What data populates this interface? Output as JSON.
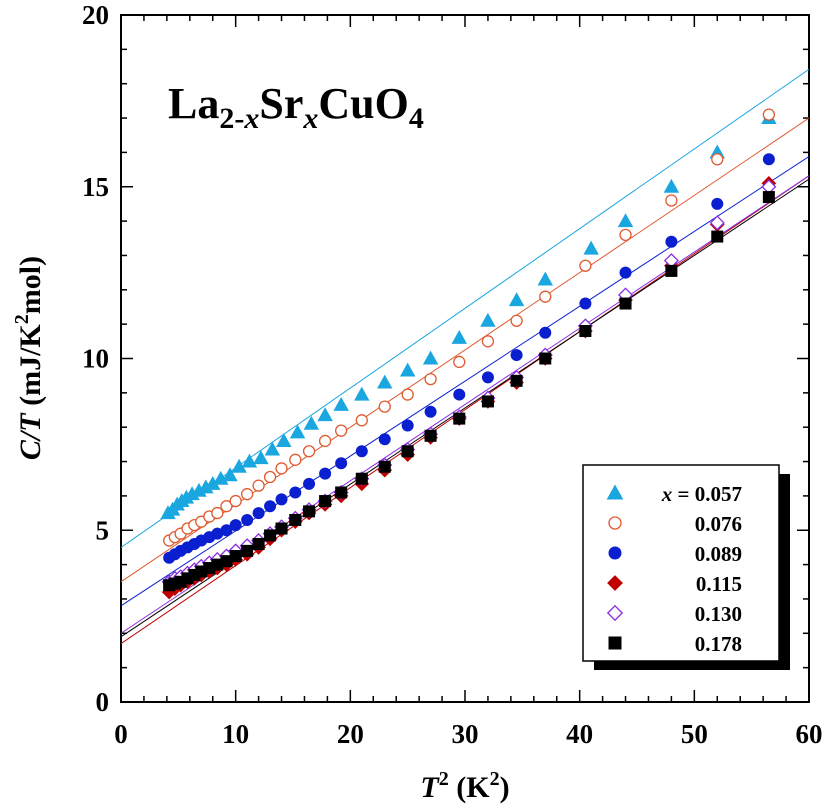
{
  "chart_data": {
    "type": "scatter",
    "title_parts": {
      "a": "La",
      "b": "2-",
      "c": "x",
      "d": "Sr",
      "e": "x",
      "f": "CuO",
      "g": "4"
    },
    "xlabel": {
      "italic": "T",
      "sup": "2",
      "rest": " (K",
      "sup2": "2",
      "close": ")"
    },
    "ylabel": {
      "italic": "C/T",
      "rest": " (mJ/K",
      "sup": "2",
      "close": "mol)"
    },
    "xlim": [
      0,
      60
    ],
    "ylim": [
      0,
      20
    ],
    "xticks": [
      "0",
      "10",
      "20",
      "30",
      "40",
      "50",
      "60"
    ],
    "yticks": [
      "0",
      "5",
      "10",
      "15",
      "20"
    ],
    "grid": false,
    "legend_position": "bottom-right",
    "legend_prefix": "x = ",
    "series": [
      {
        "name": "0.057",
        "color": "#1AA7E0",
        "marker": "triangle",
        "filled": true,
        "fit": [
          4.5,
          0.232
        ],
        "points": [
          [
            4.1,
            5.5
          ],
          [
            4.5,
            5.6
          ],
          [
            4.9,
            5.75
          ],
          [
            5.3,
            5.85
          ],
          [
            5.7,
            5.95
          ],
          [
            6.2,
            6.05
          ],
          [
            6.8,
            6.15
          ],
          [
            7.4,
            6.25
          ],
          [
            8.0,
            6.35
          ],
          [
            8.7,
            6.5
          ],
          [
            9.5,
            6.6
          ],
          [
            10.3,
            6.85
          ],
          [
            11.2,
            7.0
          ],
          [
            12.2,
            7.1
          ],
          [
            13.2,
            7.35
          ],
          [
            14.2,
            7.6
          ],
          [
            15.4,
            7.85
          ],
          [
            16.6,
            8.1
          ],
          [
            17.8,
            8.35
          ],
          [
            19.2,
            8.65
          ],
          [
            21.0,
            8.95
          ],
          [
            23.0,
            9.3
          ],
          [
            25.0,
            9.65
          ],
          [
            27.0,
            10.0
          ],
          [
            29.5,
            10.6
          ],
          [
            32.0,
            11.1
          ],
          [
            34.5,
            11.7
          ],
          [
            37.0,
            12.3
          ],
          [
            41.0,
            13.2
          ],
          [
            44.0,
            14.0
          ],
          [
            48.0,
            15.0
          ],
          [
            52.0,
            16.0
          ],
          [
            56.5,
            17.0
          ]
        ]
      },
      {
        "name": "0.076",
        "color": "#E05A30",
        "marker": "circle",
        "filled": false,
        "fit": [
          3.5,
          0.225
        ],
        "points": [
          [
            4.2,
            4.7
          ],
          [
            4.7,
            4.8
          ],
          [
            5.2,
            4.9
          ],
          [
            5.8,
            5.05
          ],
          [
            6.4,
            5.15
          ],
          [
            7.0,
            5.25
          ],
          [
            7.7,
            5.4
          ],
          [
            8.4,
            5.5
          ],
          [
            9.2,
            5.7
          ],
          [
            10.0,
            5.85
          ],
          [
            11.0,
            6.05
          ],
          [
            12.0,
            6.3
          ],
          [
            13.0,
            6.55
          ],
          [
            14.0,
            6.8
          ],
          [
            15.2,
            7.05
          ],
          [
            16.4,
            7.3
          ],
          [
            17.8,
            7.6
          ],
          [
            19.2,
            7.9
          ],
          [
            21.0,
            8.2
          ],
          [
            23.0,
            8.6
          ],
          [
            25.0,
            8.95
          ],
          [
            27.0,
            9.4
          ],
          [
            29.5,
            9.9
          ],
          [
            32.0,
            10.5
          ],
          [
            34.5,
            11.1
          ],
          [
            37.0,
            11.8
          ],
          [
            40.5,
            12.7
          ],
          [
            44.0,
            13.6
          ],
          [
            48.0,
            14.6
          ],
          [
            52.0,
            15.8
          ],
          [
            56.5,
            17.1
          ]
        ]
      },
      {
        "name": "0.089",
        "color": "#0A1FD0",
        "marker": "circle",
        "filled": true,
        "fit": [
          2.8,
          0.218
        ],
        "points": [
          [
            4.2,
            4.2
          ],
          [
            4.7,
            4.3
          ],
          [
            5.2,
            4.4
          ],
          [
            5.8,
            4.5
          ],
          [
            6.4,
            4.6
          ],
          [
            7.0,
            4.7
          ],
          [
            7.7,
            4.8
          ],
          [
            8.4,
            4.9
          ],
          [
            9.2,
            5.0
          ],
          [
            10.0,
            5.15
          ],
          [
            11.0,
            5.3
          ],
          [
            12.0,
            5.5
          ],
          [
            13.0,
            5.7
          ],
          [
            14.0,
            5.9
          ],
          [
            15.2,
            6.1
          ],
          [
            16.4,
            6.35
          ],
          [
            17.8,
            6.65
          ],
          [
            19.2,
            6.95
          ],
          [
            21.0,
            7.3
          ],
          [
            23.0,
            7.65
          ],
          [
            25.0,
            8.05
          ],
          [
            27.0,
            8.45
          ],
          [
            29.5,
            8.95
          ],
          [
            32.0,
            9.45
          ],
          [
            34.5,
            10.1
          ],
          [
            37.0,
            10.75
          ],
          [
            40.5,
            11.6
          ],
          [
            44.0,
            12.5
          ],
          [
            48.0,
            13.4
          ],
          [
            52.0,
            14.5
          ],
          [
            56.5,
            15.8
          ]
        ]
      },
      {
        "name": "0.115",
        "color": "#C00000",
        "marker": "diamond",
        "filled": true,
        "fit": [
          1.7,
          0.227
        ],
        "points": [
          [
            4.2,
            3.2
          ],
          [
            4.7,
            3.3
          ],
          [
            5.2,
            3.4
          ],
          [
            5.8,
            3.5
          ],
          [
            6.4,
            3.6
          ],
          [
            7.0,
            3.7
          ],
          [
            7.7,
            3.8
          ],
          [
            8.4,
            3.9
          ],
          [
            9.2,
            4.0
          ],
          [
            10.0,
            4.15
          ],
          [
            11.0,
            4.3
          ],
          [
            12.0,
            4.5
          ],
          [
            13.0,
            4.75
          ],
          [
            14.0,
            5.0
          ],
          [
            15.2,
            5.25
          ],
          [
            16.4,
            5.5
          ],
          [
            17.8,
            5.75
          ],
          [
            19.2,
            6.0
          ],
          [
            21.0,
            6.35
          ],
          [
            23.0,
            6.75
          ],
          [
            25.0,
            7.2
          ],
          [
            27.0,
            7.7
          ],
          [
            29.5,
            8.25
          ],
          [
            32.0,
            8.75
          ],
          [
            34.5,
            9.3
          ],
          [
            37.0,
            10.0
          ],
          [
            40.5,
            10.8
          ],
          [
            44.0,
            11.7
          ],
          [
            48.0,
            12.7
          ],
          [
            52.0,
            13.9
          ],
          [
            56.5,
            15.1
          ]
        ]
      },
      {
        "name": "0.130",
        "color": "#8A2BE2",
        "marker": "diamond",
        "filled": false,
        "fit": [
          2.0,
          0.222
        ],
        "points": [
          [
            4.2,
            3.5
          ],
          [
            4.7,
            3.6
          ],
          [
            5.2,
            3.65
          ],
          [
            5.8,
            3.75
          ],
          [
            6.4,
            3.85
          ],
          [
            7.0,
            3.95
          ],
          [
            7.7,
            4.05
          ],
          [
            8.4,
            4.15
          ],
          [
            9.2,
            4.25
          ],
          [
            10.0,
            4.4
          ],
          [
            11.0,
            4.55
          ],
          [
            12.0,
            4.7
          ],
          [
            13.0,
            4.9
          ],
          [
            14.0,
            5.1
          ],
          [
            15.2,
            5.35
          ],
          [
            16.4,
            5.6
          ],
          [
            17.8,
            5.85
          ],
          [
            19.2,
            6.1
          ],
          [
            21.0,
            6.5
          ],
          [
            23.0,
            6.9
          ],
          [
            25.0,
            7.35
          ],
          [
            27.0,
            7.8
          ],
          [
            29.5,
            8.3
          ],
          [
            32.0,
            8.85
          ],
          [
            34.5,
            9.45
          ],
          [
            37.0,
            10.1
          ],
          [
            40.5,
            10.95
          ],
          [
            44.0,
            11.85
          ],
          [
            48.0,
            12.85
          ],
          [
            52.0,
            13.95
          ],
          [
            56.5,
            15.0
          ]
        ]
      },
      {
        "name": "0.178",
        "color": "#000000",
        "marker": "square",
        "filled": true,
        "fit": [
          1.9,
          0.222
        ],
        "points": [
          [
            4.2,
            3.4
          ],
          [
            4.7,
            3.45
          ],
          [
            5.2,
            3.5
          ],
          [
            5.8,
            3.6
          ],
          [
            6.4,
            3.7
          ],
          [
            7.0,
            3.8
          ],
          [
            7.7,
            3.9
          ],
          [
            8.4,
            4.0
          ],
          [
            9.2,
            4.1
          ],
          [
            10.0,
            4.25
          ],
          [
            11.0,
            4.4
          ],
          [
            12.0,
            4.6
          ],
          [
            13.0,
            4.85
          ],
          [
            14.0,
            5.05
          ],
          [
            15.2,
            5.3
          ],
          [
            16.4,
            5.55
          ],
          [
            17.8,
            5.85
          ],
          [
            19.2,
            6.1
          ],
          [
            21.0,
            6.5
          ],
          [
            23.0,
            6.85
          ],
          [
            25.0,
            7.3
          ],
          [
            27.0,
            7.75
          ],
          [
            29.5,
            8.25
          ],
          [
            32.0,
            8.75
          ],
          [
            34.5,
            9.35
          ],
          [
            37.0,
            10.0
          ],
          [
            40.5,
            10.8
          ],
          [
            44.0,
            11.6
          ],
          [
            48.0,
            12.55
          ],
          [
            52.0,
            13.55
          ],
          [
            56.5,
            14.7
          ]
        ]
      }
    ]
  }
}
